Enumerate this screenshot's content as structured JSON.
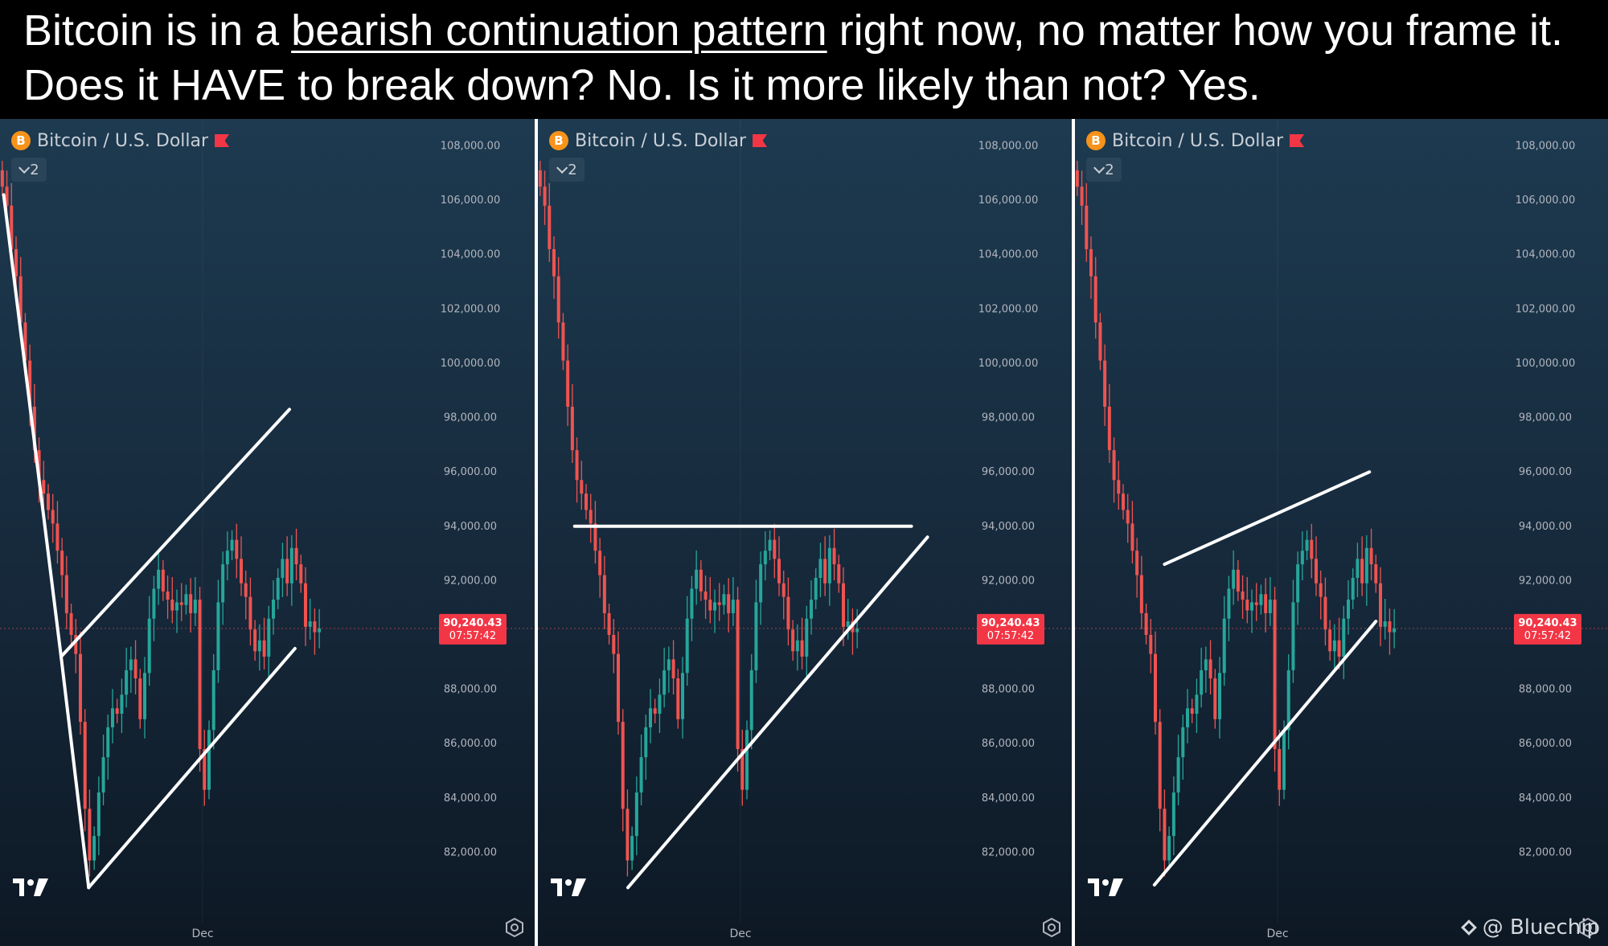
{
  "header": {
    "line1_pre": "Bitcoin is in a ",
    "line1_underlined": "bearish continuation pattern",
    "line1_post": " right now, no matter how you frame it.",
    "line2": "Does it HAVE to break down? No. Is it more likely than not? Yes."
  },
  "panels": [
    {
      "symbol": "Bitcoin / U.S. Dollar",
      "coin_letter": "B",
      "interval_count": "2",
      "x_label": "Dec",
      "price_tag": {
        "price": "90,240.43",
        "countdown": "07:57:42"
      },
      "pattern": "bear-pennant"
    },
    {
      "symbol": "Bitcoin / U.S. Dollar",
      "coin_letter": "B",
      "interval_count": "2",
      "x_label": "Dec",
      "price_tag": {
        "price": "90,240.43",
        "countdown": "07:57:42"
      },
      "pattern": "ascending-triangle"
    },
    {
      "symbol": "Bitcoin / U.S. Dollar",
      "coin_letter": "B",
      "interval_count": "2",
      "x_label": "Dec",
      "price_tag": {
        "price": "90,240.43",
        "countdown": "07:57:42"
      },
      "pattern": "rising-wedge"
    }
  ],
  "watermark": "@ Bluechip",
  "colors": {
    "up": "#26a69a",
    "down": "#ef5350",
    "tag": "#f23645",
    "line": "#ffffff",
    "axis_text": "#b2b5be"
  },
  "chart_data": [
    {
      "type": "candlestick",
      "title": "Bitcoin / U.S. Dollar",
      "y_ticks": [
        108000,
        106000,
        104000,
        102000,
        100000,
        98000,
        96000,
        94000,
        92000,
        90000,
        88000,
        86000,
        84000,
        82000
      ],
      "y_tick_labels": [
        "108,000.00",
        "106,000.00",
        "104,000.00",
        "102,000.00",
        "100,000.00",
        "98,000.00",
        "96,000.00",
        "94,000.00",
        "92,000.00",
        "",
        "88,000.00",
        "86,000.00",
        "84,000.00",
        "82,000.00"
      ],
      "ylim": [
        80000,
        108400
      ],
      "last_price": 90240.43,
      "x_label": "Dec",
      "close_series": [
        106500,
        105800,
        104200,
        103200,
        101500,
        100100,
        98400,
        96800,
        95700,
        95200,
        94600,
        94100,
        93100,
        92200,
        90800,
        90000,
        89300,
        86800,
        83600,
        81700,
        82600,
        84200,
        85500,
        86600,
        87300,
        87100,
        87800,
        88700,
        89100,
        88400,
        86900,
        88600,
        90600,
        91700,
        92400,
        91600,
        91300,
        90900,
        91200,
        91100,
        91500,
        90800,
        91300,
        85800,
        84300,
        86500,
        88700,
        91200,
        92600,
        93100,
        93500,
        92800,
        91900,
        91400,
        90200,
        89400,
        89800,
        89200,
        90600,
        91300,
        92100,
        92800,
        91900,
        93200,
        92600,
        91900,
        90300,
        90500,
        90100,
        90240
      ],
      "annotations": [
        {
          "label": "flagpole",
          "points": [
            [
              0.3,
              106200
            ],
            [
              12.8,
              89200
            ]
          ]
        },
        {
          "label": "upper-trendline",
          "points": [
            [
              12.8,
              89200
            ],
            [
              62.5,
              98300
            ]
          ]
        },
        {
          "label": "flagpole-low",
          "points": [
            [
              12.8,
              89200
            ],
            [
              18.8,
              80700
            ]
          ]
        },
        {
          "label": "lower-trendline",
          "points": [
            [
              18.8,
              80700
            ],
            [
              63.7,
              89500
            ]
          ]
        }
      ]
    },
    {
      "type": "candlestick",
      "title": "Bitcoin / U.S. Dollar",
      "y_ticks": [
        108000,
        106000,
        104000,
        102000,
        100000,
        98000,
        96000,
        94000,
        92000,
        90000,
        88000,
        86000,
        84000,
        82000
      ],
      "y_tick_labels": [
        "108,000.00",
        "106,000.00",
        "104,000.00",
        "102,000.00",
        "100,000.00",
        "98,000.00",
        "96,000.00",
        "94,000.00",
        "92,000.00",
        "",
        "88,000.00",
        "86,000.00",
        "84,000.00",
        "82,000.00"
      ],
      "ylim": [
        80000,
        108400
      ],
      "last_price": 90240.43,
      "x_label": "Dec",
      "close_series": [
        106500,
        105800,
        104200,
        103200,
        101500,
        100100,
        98400,
        96800,
        95700,
        95200,
        94600,
        94100,
        93100,
        92200,
        90800,
        90000,
        89300,
        86800,
        83600,
        81700,
        82600,
        84200,
        85500,
        86600,
        87300,
        87100,
        87800,
        88700,
        89100,
        88400,
        86900,
        88600,
        90600,
        91700,
        92400,
        91600,
        91300,
        90900,
        91200,
        91100,
        91500,
        90800,
        91300,
        85800,
        84300,
        86500,
        88700,
        91200,
        92600,
        93100,
        93500,
        92800,
        91900,
        91400,
        90200,
        89400,
        89800,
        89200,
        90600,
        91300,
        92100,
        92800,
        91900,
        93200,
        92600,
        91900,
        90300,
        90500,
        90100,
        90240
      ],
      "annotations": [
        {
          "label": "resistance",
          "points": [
            [
              7.5,
              94000
            ],
            [
              80.8,
              94000
            ]
          ]
        },
        {
          "label": "rising-support",
          "points": [
            [
              19.1,
              80700
            ],
            [
              84.3,
              93600
            ]
          ]
        }
      ]
    },
    {
      "type": "candlestick",
      "title": "Bitcoin / U.S. Dollar",
      "y_ticks": [
        108000,
        106000,
        104000,
        102000,
        100000,
        98000,
        96000,
        94000,
        92000,
        90000,
        88000,
        86000,
        84000,
        82000
      ],
      "y_tick_labels": [
        "108,000.00",
        "106,000.00",
        "104,000.00",
        "102,000.00",
        "100,000.00",
        "98,000.00",
        "96,000.00",
        "94,000.00",
        "92,000.00",
        "",
        "88,000.00",
        "86,000.00",
        "84,000.00",
        "82,000.00"
      ],
      "ylim": [
        80000,
        108400
      ],
      "last_price": 90240.43,
      "x_label": "Dec",
      "close_series": [
        106500,
        105800,
        104200,
        103200,
        101500,
        100100,
        98400,
        96800,
        95700,
        95200,
        94600,
        94100,
        93100,
        92200,
        90800,
        90000,
        89300,
        86800,
        83600,
        81700,
        82600,
        84200,
        85500,
        86600,
        87300,
        87100,
        87800,
        88700,
        89100,
        88400,
        86900,
        88600,
        90600,
        91700,
        92400,
        91600,
        91300,
        90900,
        91200,
        91100,
        91500,
        90800,
        91300,
        85800,
        84300,
        86500,
        88700,
        91200,
        92600,
        93100,
        93500,
        92800,
        91900,
        91400,
        90200,
        89400,
        89800,
        89200,
        90600,
        91300,
        92100,
        92800,
        91900,
        93200,
        92600,
        91900,
        90300,
        90500,
        90100,
        90240
      ],
      "annotations": [
        {
          "label": "rising-resistance",
          "points": [
            [
              19.0,
              92600
            ],
            [
              63.6,
              96000
            ]
          ]
        },
        {
          "label": "rising-support",
          "points": [
            [
              16.8,
              80800
            ],
            [
              65.0,
              90500
            ]
          ]
        }
      ]
    }
  ]
}
